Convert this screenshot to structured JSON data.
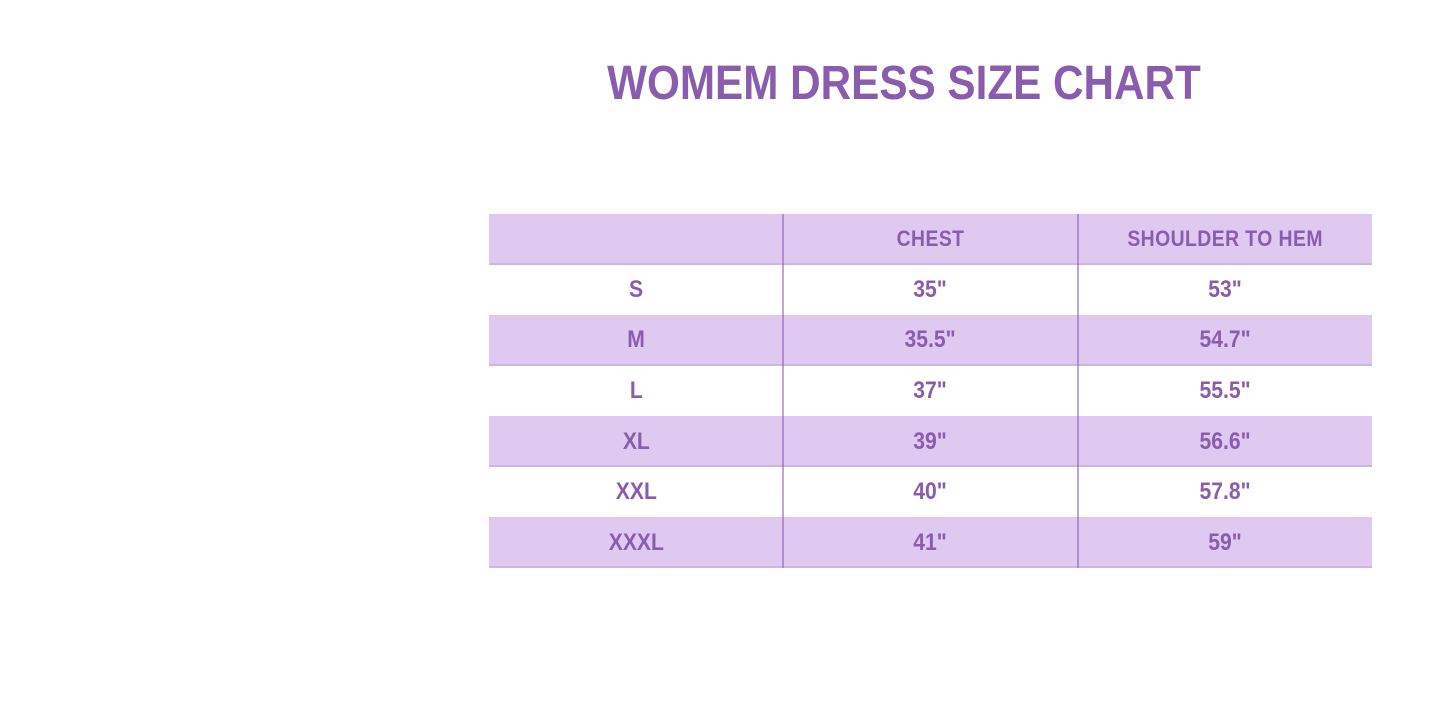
{
  "title": "WOMEM DRESS SIZE CHART",
  "table": {
    "headers": {
      "size": "",
      "chest": "CHEST",
      "shoulder_to_hem": "SHOULDER TO HEM"
    },
    "rows": [
      {
        "size": "S",
        "chest": "35\"",
        "shoulder_to_hem": "53\""
      },
      {
        "size": "M",
        "chest": "35.5\"",
        "shoulder_to_hem": "54.7\""
      },
      {
        "size": "L",
        "chest": "37\"",
        "shoulder_to_hem": "55.5\""
      },
      {
        "size": "XL",
        "chest": "39\"",
        "shoulder_to_hem": "56.6\""
      },
      {
        "size": "XXL",
        "chest": "40\"",
        "shoulder_to_hem": "57.8\""
      },
      {
        "size": "XXXL",
        "chest": "41\"",
        "shoulder_to_hem": "59\""
      }
    ]
  },
  "colors": {
    "text_purple": "#8a5cad",
    "row_lavender": "#dfc9f1",
    "divider_purple": "#a988c9",
    "background": "#ffffff"
  },
  "chart_data": {
    "type": "table",
    "title": "WOMEM DRESS SIZE CHART",
    "columns": [
      "",
      "CHEST",
      "SHOULDER TO HEM"
    ],
    "rows": [
      [
        "S",
        "35\"",
        "53\""
      ],
      [
        "M",
        "35.5\"",
        "54.7\""
      ],
      [
        "L",
        "37\"",
        "55.5\""
      ],
      [
        "XL",
        "39\"",
        "56.6\""
      ],
      [
        "XXL",
        "40\"",
        "57.8\""
      ],
      [
        "XXXL",
        "41\"",
        "59\""
      ]
    ],
    "notes": "Women dress size chart infographic; alternating white and lavender rows; header row and even bands shaded lavender; all text purple bold condensed caps."
  }
}
